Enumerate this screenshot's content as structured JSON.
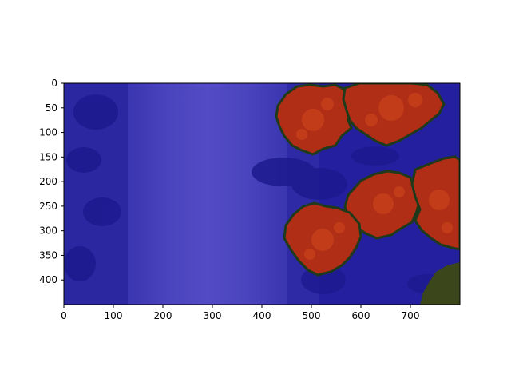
{
  "figure": {
    "background_color": "#ffffff",
    "image_description_source": "aerial segmentation overlay",
    "overlay": {
      "background_color": "#3a35b0",
      "road_color": "#4d46c0",
      "tree_color": "#b23018",
      "tree_highlight_color": "#d8501e",
      "boundary_color": "#1f3a1a",
      "dark_corner_color": "#3f4a1a"
    }
  },
  "chart_data": {
    "type": "image",
    "xlim": [
      0,
      800
    ],
    "ylim": [
      450,
      0
    ],
    "x_ticks": [
      0,
      100,
      200,
      300,
      400,
      500,
      600,
      700
    ],
    "y_ticks": [
      0,
      50,
      100,
      150,
      200,
      250,
      300,
      350,
      400
    ],
    "x_tick_labels": [
      "0",
      "100",
      "200",
      "300",
      "400",
      "500",
      "600",
      "700"
    ],
    "y_tick_labels": [
      "0",
      "50",
      "100",
      "150",
      "200",
      "250",
      "300",
      "350",
      "400"
    ],
    "title": "",
    "xlabel": "",
    "ylabel": ""
  }
}
